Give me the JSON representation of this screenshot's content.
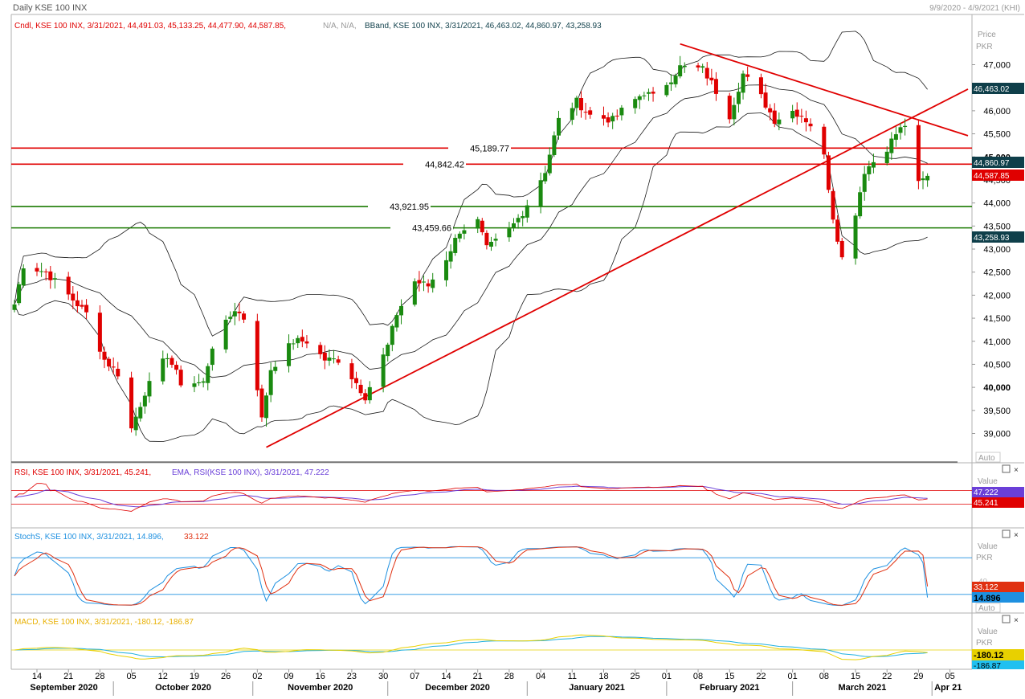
{
  "header": {
    "title": "Daily KSE 100 INX",
    "date_range": "9/9/2020 - 4/9/2021 (KHI)"
  },
  "main_panel": {
    "legend_cndl": "Cndl, KSE 100 INX, 3/31/2021, 44,491.03, 45,133.25, 44,477.90, 44,587.85,",
    "legend_na": "N/A, N/A,",
    "legend_bband": "BBand, KSE 100 INX, 3/31/2021, 46,463.02, 44,860.97, 43,258.93",
    "axis_title": "Price",
    "axis_unit": "PKR",
    "auto_label": "Auto",
    "tag_bb_upper": "46,463.02",
    "tag_bb_mid": "44,860.97",
    "tag_close": "44,587.85",
    "tag_bb_lower": "43,258.93",
    "tag_bb_color": "#0f3f4a",
    "tag_close_color": "#e00000"
  },
  "rsi_panel": {
    "legend_rsi": "RSI, KSE 100 INX, 3/31/2021, 45.241,",
    "legend_ema": "EMA, RSI(KSE 100 INX), 3/31/2021, 47.222",
    "axis_title": "Value",
    "tag_ema": "47.222",
    "tag_rsi": "45.241",
    "rsi_color": "#e00000",
    "ema_color": "#6a3fd8"
  },
  "stoch_panel": {
    "legend_stoch": "StochS, KSE 100 INX, 3/31/2021, 14.896,",
    "legend_d": "33.122",
    "axis_title": "Value",
    "axis_unit": "PKR",
    "tick_hidden": "40",
    "tag_d": "33.122",
    "tag_k": "14.896",
    "auto_label": "Auto",
    "k_color": "#1e90e0",
    "d_color": "#e03010"
  },
  "macd_panel": {
    "legend_macd": "MACD, KSE 100 INX, 3/31/2021, -180.12, -186.87",
    "axis_title": "Value",
    "axis_unit": "PKR",
    "tag_macd": "-180.12",
    "tag_signal": "-186.87",
    "macd_color": "#e8d000",
    "signal_color": "#20b0e0"
  },
  "x_axis": {
    "day_ticks": [
      "14",
      "21",
      "28",
      "05",
      "12",
      "19",
      "26",
      "02",
      "09",
      "16",
      "23",
      "30",
      "07",
      "14",
      "21",
      "28",
      "04",
      "11",
      "18",
      "25",
      "01",
      "08",
      "15",
      "22",
      "01",
      "08",
      "15",
      "22",
      "29",
      "05"
    ],
    "months": [
      "September 2020",
      "October 2020",
      "November 2020",
      "December 2020",
      "January 2021",
      "February 2021",
      "March 2021",
      "Apr 21"
    ]
  },
  "chart_data": {
    "type": "candlestick",
    "symbol": "KSE 100 INX",
    "period": "Daily",
    "x_range": [
      "2020-09-09",
      "2021-04-09"
    ],
    "price_axis": {
      "unit": "PKR",
      "ticks": [
        39000,
        39500,
        40000,
        40500,
        41000,
        41500,
        42000,
        42500,
        43000,
        43500,
        44000,
        44500,
        45000,
        45500,
        46000,
        46500,
        47000
      ],
      "ylim": [
        38700,
        47600
      ]
    },
    "horizontal_levels": [
      {
        "value": 45189.77,
        "label": "45,189.77",
        "color": "#e00000"
      },
      {
        "value": 44842.42,
        "label": "44,842.42",
        "color": "#e00000"
      },
      {
        "value": 43921.95,
        "label": "43,921.95",
        "color": "#1a7a00"
      },
      {
        "value": 43459.66,
        "label": "43,459.66",
        "color": "#1a7a00"
      }
    ],
    "trendlines": [
      {
        "from": [
          "2020-11-04",
          38700
        ],
        "to": [
          "2021-04-09",
          46470
        ],
        "color": "#e00000"
      },
      {
        "from": [
          "2021-02-04",
          47450
        ],
        "to": [
          "2021-04-09",
          45460
        ],
        "color": "#e00000"
      }
    ],
    "last_candle": {
      "date": "2021-03-31",
      "open": 44491.03,
      "high": 45133.25,
      "low": 44477.9,
      "close": 44587.85
    },
    "bollinger_last": {
      "upper": 46463.02,
      "middle": 44860.97,
      "lower": 43258.93
    },
    "close_anchors": [
      [
        "2020-09-09",
        41800
      ],
      [
        "2020-09-11",
        42650
      ],
      [
        "2020-09-16",
        42500
      ],
      [
        "2020-09-22",
        41900
      ],
      [
        "2020-09-25",
        41600
      ],
      [
        "2020-09-29",
        40600
      ],
      [
        "2020-10-02",
        40300
      ],
      [
        "2020-10-05",
        39100
      ],
      [
        "2020-10-08",
        39900
      ],
      [
        "2020-10-13",
        40700
      ],
      [
        "2020-10-16",
        40100
      ],
      [
        "2020-10-21",
        40100
      ],
      [
        "2020-10-23",
        40900
      ],
      [
        "2020-10-28",
        41700
      ],
      [
        "2020-10-30",
        41500
      ],
      [
        "2020-11-02",
        40000
      ],
      [
        "2020-11-03",
        39300
      ],
      [
        "2020-11-05",
        40400
      ],
      [
        "2020-11-10",
        41000
      ],
      [
        "2020-11-13",
        41000
      ],
      [
        "2020-11-17",
        40600
      ],
      [
        "2020-11-20",
        40600
      ],
      [
        "2020-11-24",
        40100
      ],
      [
        "2020-11-26",
        39800
      ],
      [
        "2020-12-01",
        40900
      ],
      [
        "2020-12-03",
        41600
      ],
      [
        "2020-12-07",
        42300
      ],
      [
        "2020-12-10",
        42200
      ],
      [
        "2020-12-14",
        42800
      ],
      [
        "2020-12-17",
        43400
      ],
      [
        "2020-12-21",
        43600
      ],
      [
        "2020-12-23",
        43000
      ],
      [
        "2020-12-28",
        43400
      ],
      [
        "2020-12-31",
        43800
      ],
      [
        "2021-01-05",
        44700
      ],
      [
        "2021-01-08",
        45800
      ],
      [
        "2021-01-12",
        46200
      ],
      [
        "2021-01-15",
        45900
      ],
      [
        "2021-01-20",
        45800
      ],
      [
        "2021-01-22",
        46000
      ],
      [
        "2021-01-27",
        46400
      ],
      [
        "2021-01-29",
        46300
      ],
      [
        "2021-02-02",
        46700
      ],
      [
        "2021-02-04",
        46950
      ],
      [
        "2021-02-09",
        46900
      ],
      [
        "2021-02-11",
        46600
      ],
      [
        "2021-02-15",
        45900
      ],
      [
        "2021-02-18",
        46800
      ],
      [
        "2021-02-22",
        46300
      ],
      [
        "2021-02-25",
        45800
      ],
      [
        "2021-03-01",
        46000
      ],
      [
        "2021-03-03",
        45900
      ],
      [
        "2021-03-05",
        45700
      ],
      [
        "2021-03-08",
        45000
      ],
      [
        "2021-03-10",
        43700
      ],
      [
        "2021-03-12",
        42800
      ],
      [
        "2021-03-15",
        43800
      ],
      [
        "2021-03-17",
        44700
      ],
      [
        "2021-03-19",
        44900
      ],
      [
        "2021-03-22",
        45200
      ],
      [
        "2021-03-24",
        45500
      ],
      [
        "2021-03-26",
        45700
      ],
      [
        "2021-03-29",
        44400
      ],
      [
        "2021-03-31",
        44587.85
      ]
    ],
    "rsi": {
      "last": 45.241,
      "ema_last": 47.222,
      "levels": [
        70,
        30
      ]
    },
    "stochastic": {
      "k_last": 14.896,
      "d_last": 33.122,
      "levels": [
        80,
        20
      ]
    },
    "macd": {
      "macd_last": -180.12,
      "signal_last": -186.87
    }
  }
}
